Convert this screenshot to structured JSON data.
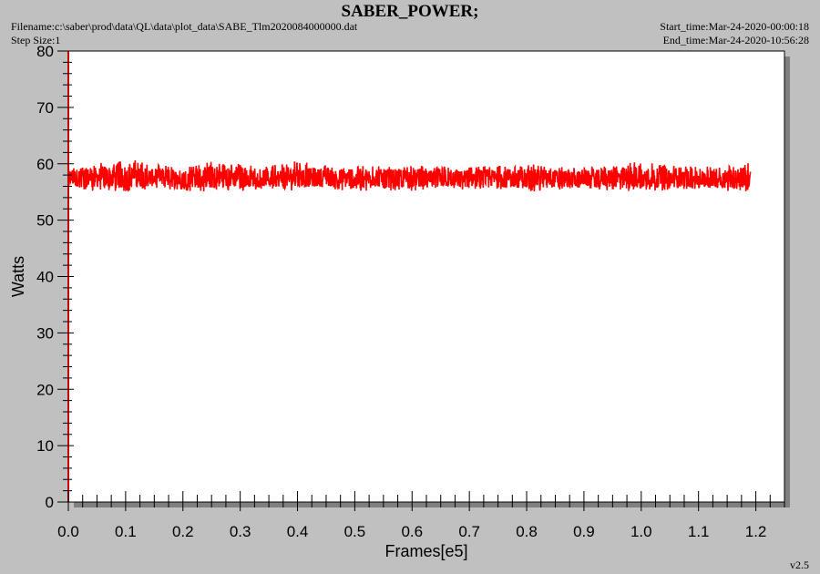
{
  "header": {
    "title": "SABER_POWER;",
    "filename": "Filename:c:\\saber\\prod\\data\\QL\\data\\plot_data\\SABE_Tlm2020084000000.dat",
    "step_size": "Step Size:1",
    "start_time": "Start_time:Mar-24-2020-00:00:18",
    "end_time": "End_time:Mar-24-2020-10:56:28"
  },
  "footer": {
    "version": "v2.5"
  },
  "colors": {
    "background": "#c0c0c0",
    "plot_area": "#ffffff",
    "series": "#ff0000",
    "shadow": "#808080"
  },
  "chart_data": {
    "type": "line",
    "title": "SABER_POWER;",
    "xlabel": "Frames[e5]",
    "ylabel": "Watts",
    "xlim": [
      0.0,
      1.25
    ],
    "ylim": [
      0,
      80
    ],
    "x_ticks": [
      "0.0",
      "0.1",
      "0.2",
      "0.3",
      "0.4",
      "0.5",
      "0.6",
      "0.7",
      "0.8",
      "0.9",
      "1.0",
      "1.1",
      "1.2"
    ],
    "y_ticks": [
      "0",
      "10",
      "20",
      "30",
      "40",
      "50",
      "60",
      "70",
      "80"
    ],
    "grid": false,
    "legend": "none",
    "series": [
      {
        "color": "#ff0000",
        "x": [
          0.0,
          0.05,
          0.1,
          0.15,
          0.2,
          0.25,
          0.3,
          0.35,
          0.4,
          0.45,
          0.5,
          0.55,
          0.6,
          0.65,
          0.7,
          0.75,
          0.8,
          0.85,
          0.9,
          0.95,
          1.0,
          1.05,
          1.1,
          1.15,
          1.19
        ],
        "y_mean": [
          57.5,
          57.6,
          57.7,
          57.5,
          57.4,
          57.6,
          57.5,
          57.4,
          57.6,
          57.5,
          57.4,
          57.5,
          57.4,
          57.3,
          57.4,
          57.5,
          57.3,
          57.4,
          57.3,
          57.5,
          57.5,
          57.4,
          57.3,
          57.4,
          57.6
        ],
        "y_min": [
          55.5,
          55.0,
          55.0,
          55.5,
          55.2,
          55.0,
          55.3,
          55.5,
          55.2,
          55.5,
          55.0,
          55.3,
          55.2,
          55.5,
          55.3,
          55.5,
          55.0,
          55.3,
          55.5,
          55.2,
          55.0,
          55.3,
          55.5,
          55.2,
          55.0
        ],
        "y_max": [
          59.5,
          60.0,
          61.2,
          59.8,
          59.5,
          60.5,
          60.0,
          59.8,
          60.5,
          59.8,
          59.7,
          59.6,
          59.7,
          59.5,
          59.4,
          59.6,
          60.0,
          59.6,
          59.5,
          59.7,
          60.5,
          59.7,
          59.5,
          59.6,
          61.0
        ]
      }
    ]
  }
}
